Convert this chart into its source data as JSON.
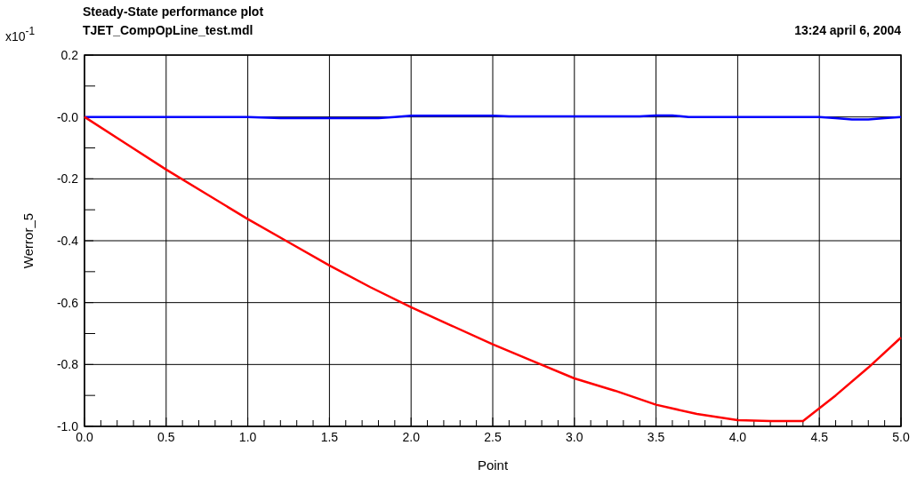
{
  "chart_data": {
    "type": "line",
    "title": "Steady-State performance plot",
    "subtitle": "TJET_CompOpLine_test.mdl",
    "annotations": [
      "13:24  april 6, 2004",
      "x10$^{-1}$"
    ],
    "xlabel": "Point",
    "ylabel": "Werror_5",
    "xlim": [
      0,
      5
    ],
    "ylim": [
      -1.0,
      0.2
    ],
    "xticks": [
      {
        "value": 0,
        "label": "0.0"
      },
      {
        "value": 0.1,
        "label": null
      },
      {
        "value": 0.2,
        "label": null
      },
      {
        "value": 0.3,
        "label": null
      },
      {
        "value": 0.4,
        "label": null
      },
      {
        "value": 0.5,
        "label": "0.5"
      },
      {
        "value": 0.6,
        "label": null
      },
      {
        "value": 0.7,
        "label": null
      },
      {
        "value": 0.8,
        "label": null
      },
      {
        "value": 0.9,
        "label": null
      },
      {
        "value": 1,
        "label": "1.0"
      },
      {
        "value": 1.1,
        "label": null
      },
      {
        "value": 1.2,
        "label": null
      },
      {
        "value": 1.3,
        "label": null
      },
      {
        "value": 1.4,
        "label": null
      },
      {
        "value": 1.5,
        "label": "1.5"
      },
      {
        "value": 1.6,
        "label": null
      },
      {
        "value": 1.7,
        "label": null
      },
      {
        "value": 1.8,
        "label": null
      },
      {
        "value": 1.9,
        "label": null
      },
      {
        "value": 2,
        "label": "2.0"
      },
      {
        "value": 2.1,
        "label": null
      },
      {
        "value": 2.2,
        "label": null
      },
      {
        "value": 2.3,
        "label": null
      },
      {
        "value": 2.4,
        "label": null
      },
      {
        "value": 2.5,
        "label": "2.5"
      },
      {
        "value": 2.6,
        "label": null
      },
      {
        "value": 2.7,
        "label": null
      },
      {
        "value": 2.8,
        "label": null
      },
      {
        "value": 2.9,
        "label": null
      },
      {
        "value": 3,
        "label": "3.0"
      },
      {
        "value": 3.1,
        "label": null
      },
      {
        "value": 3.2,
        "label": null
      },
      {
        "value": 3.3,
        "label": null
      },
      {
        "value": 3.4,
        "label": null
      },
      {
        "value": 3.5,
        "label": "3.5"
      },
      {
        "value": 3.6,
        "label": null
      },
      {
        "value": 3.7,
        "label": null
      },
      {
        "value": 3.8,
        "label": null
      },
      {
        "value": 3.9,
        "label": null
      },
      {
        "value": 4,
        "label": "4.0"
      },
      {
        "value": 4.1,
        "label": null
      },
      {
        "value": 4.2,
        "label": null
      },
      {
        "value": 4.3,
        "label": null
      },
      {
        "value": 4.4,
        "label": null
      },
      {
        "value": 4.5,
        "label": "4.5"
      },
      {
        "value": 4.6,
        "label": null
      },
      {
        "value": 4.7,
        "label": null
      },
      {
        "value": 4.8,
        "label": null
      },
      {
        "value": 4.9,
        "label": null
      },
      {
        "value": 5,
        "label": "5.0"
      }
    ],
    "yticks": [
      {
        "value": 0.2,
        "label": "0.2"
      },
      {
        "value": 0.1,
        "label": null
      },
      {
        "value": 0,
        "label": "-0.0"
      },
      {
        "value": -0.1,
        "label": null
      },
      {
        "value": -0.2,
        "label": "-0.2"
      },
      {
        "value": -0.3,
        "label": null
      },
      {
        "value": -0.4,
        "label": "-0.4"
      },
      {
        "value": -0.5,
        "label": null
      },
      {
        "value": -0.6,
        "label": "-0.6"
      },
      {
        "value": -0.7,
        "label": null
      },
      {
        "value": -0.8,
        "label": "-0.8"
      },
      {
        "value": -0.9,
        "label": null
      },
      {
        "value": -1.0,
        "label": "-1.0"
      }
    ],
    "grid": true,
    "marker": "none",
    "line_style": "solid",
    "series": [
      {
        "color": "#0000ff",
        "x": [
          0,
          1.0,
          1.2,
          1.8,
          1.9,
          2.0,
          2.5,
          2.6,
          3.4,
          3.5,
          3.6,
          3.7,
          4.5,
          4.6,
          4.7,
          4.8,
          4.9,
          5.0
        ],
        "values": [
          0,
          0,
          -0.004,
          -0.004,
          0,
          0.004,
          0.004,
          0.002,
          0.002,
          0.005,
          0.005,
          0,
          0,
          -0.004,
          -0.008,
          -0.008,
          -0.004,
          0
        ]
      },
      {
        "color": "#ff0000",
        "x": [
          0,
          0.25,
          0.5,
          0.75,
          1.0,
          1.25,
          1.5,
          1.75,
          2.0,
          2.25,
          2.5,
          2.75,
          3.0,
          3.25,
          3.5,
          3.75,
          4.0,
          4.2,
          4.4,
          4.6,
          4.8,
          5.0
        ],
        "values": [
          0,
          -0.085,
          -0.17,
          -0.25,
          -0.33,
          -0.405,
          -0.48,
          -0.55,
          -0.615,
          -0.675,
          -0.735,
          -0.79,
          -0.845,
          -0.885,
          -0.93,
          -0.96,
          -0.98,
          -0.983,
          -0.983,
          -0.9,
          -0.81,
          -0.713
        ]
      }
    ]
  }
}
